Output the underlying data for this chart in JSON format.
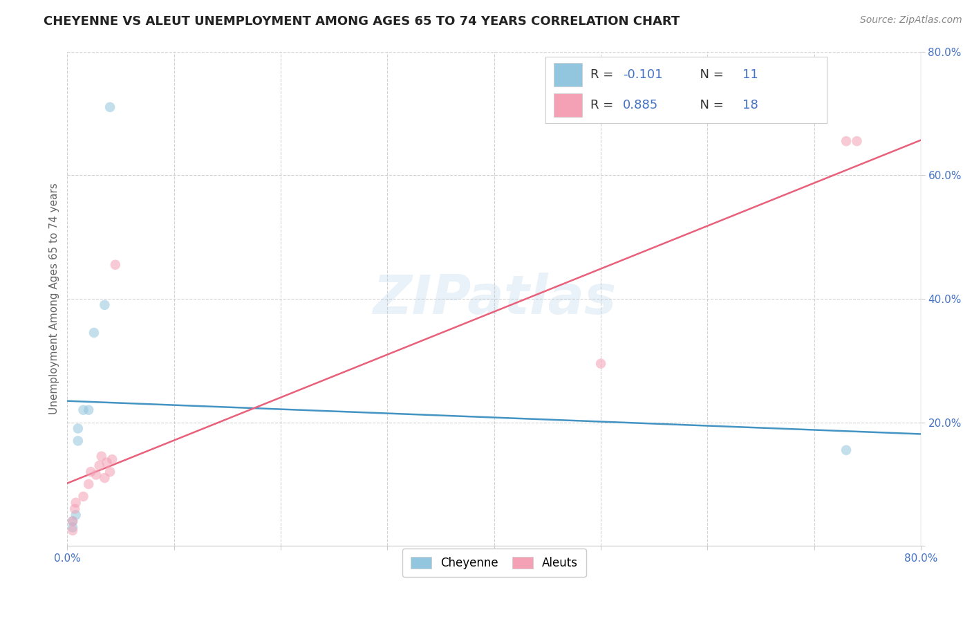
{
  "title": "CHEYENNE VS ALEUT UNEMPLOYMENT AMONG AGES 65 TO 74 YEARS CORRELATION CHART",
  "source": "Source: ZipAtlas.com",
  "ylabel": "Unemployment Among Ages 65 to 74 years",
  "xlim": [
    0.0,
    0.8
  ],
  "ylim": [
    0.0,
    0.8
  ],
  "xticks": [
    0.0,
    0.1,
    0.2,
    0.3,
    0.4,
    0.5,
    0.6,
    0.7,
    0.8
  ],
  "yticks": [
    0.0,
    0.2,
    0.4,
    0.6,
    0.8
  ],
  "cheyenne_x": [
    0.005,
    0.005,
    0.008,
    0.01,
    0.01,
    0.015,
    0.02,
    0.025,
    0.035,
    0.04,
    0.73
  ],
  "cheyenne_y": [
    0.03,
    0.04,
    0.05,
    0.17,
    0.19,
    0.22,
    0.22,
    0.345,
    0.39,
    0.71,
    0.155
  ],
  "aleuts_x": [
    0.005,
    0.005,
    0.007,
    0.008,
    0.015,
    0.02,
    0.022,
    0.027,
    0.03,
    0.032,
    0.035,
    0.037,
    0.04,
    0.042,
    0.045,
    0.5,
    0.73,
    0.74
  ],
  "aleuts_y": [
    0.025,
    0.04,
    0.06,
    0.07,
    0.08,
    0.1,
    0.12,
    0.115,
    0.13,
    0.145,
    0.11,
    0.135,
    0.12,
    0.14,
    0.455,
    0.295,
    0.655,
    0.655
  ],
  "cheyenne_color": "#92c5de",
  "aleuts_color": "#f4a0b5",
  "cheyenne_line_color": "#4393c3",
  "aleuts_line_color": "#e8607a",
  "cheyenne_R": -0.101,
  "cheyenne_N": 11,
  "aleuts_R": 0.885,
  "aleuts_N": 18,
  "watermark": "ZIPatlas",
  "background_color": "#ffffff",
  "grid_color": "#cccccc",
  "marker_size": 110,
  "marker_alpha": 0.55
}
